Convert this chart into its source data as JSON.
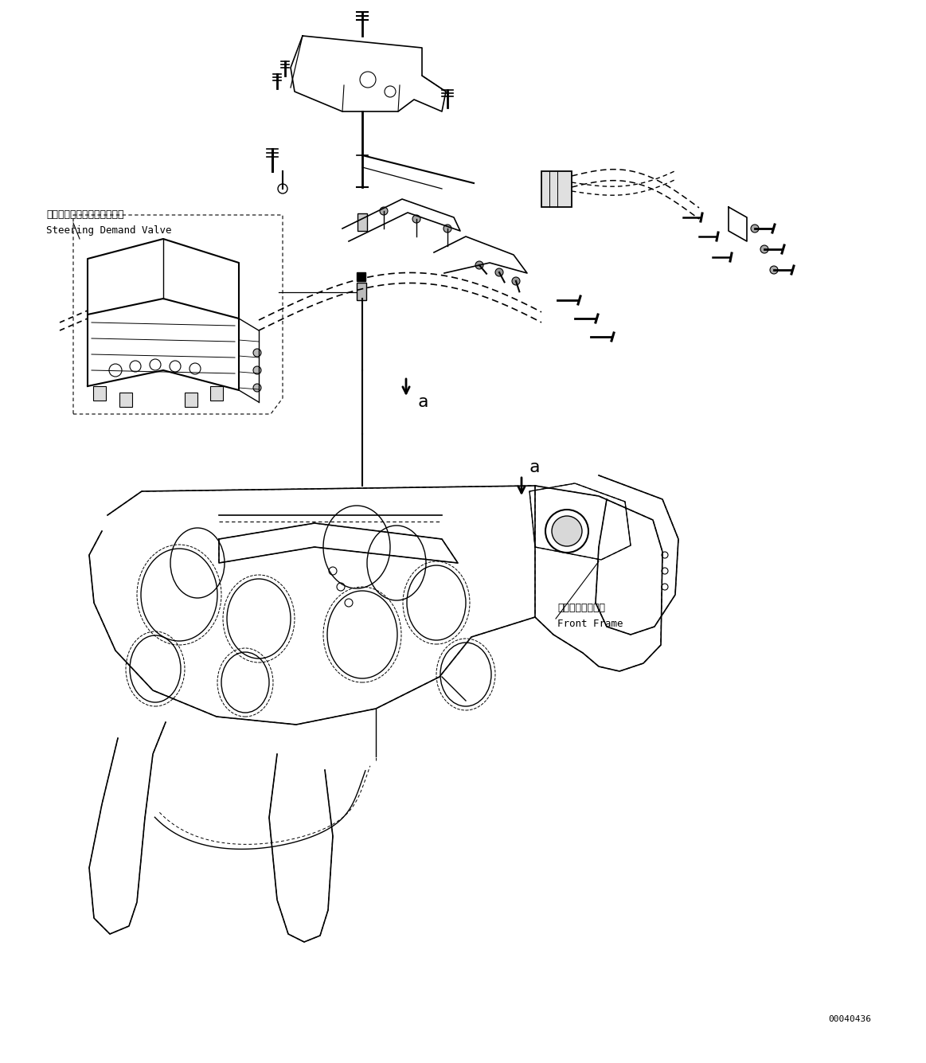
{
  "bg_color": "#ffffff",
  "line_color": "#000000",
  "fig_width": 11.63,
  "fig_height": 13.35,
  "label_steering_jp": "ステアリングデマンドバルブ",
  "label_steering_en": "Steering Demand Valve",
  "label_front_frame_jp": "フロントフレーム",
  "label_front_frame_en": "Front Frame",
  "label_a": "a",
  "doc_number": "00040436",
  "font_size_label": 9,
  "font_size_doc": 8,
  "font_size_a": 14
}
